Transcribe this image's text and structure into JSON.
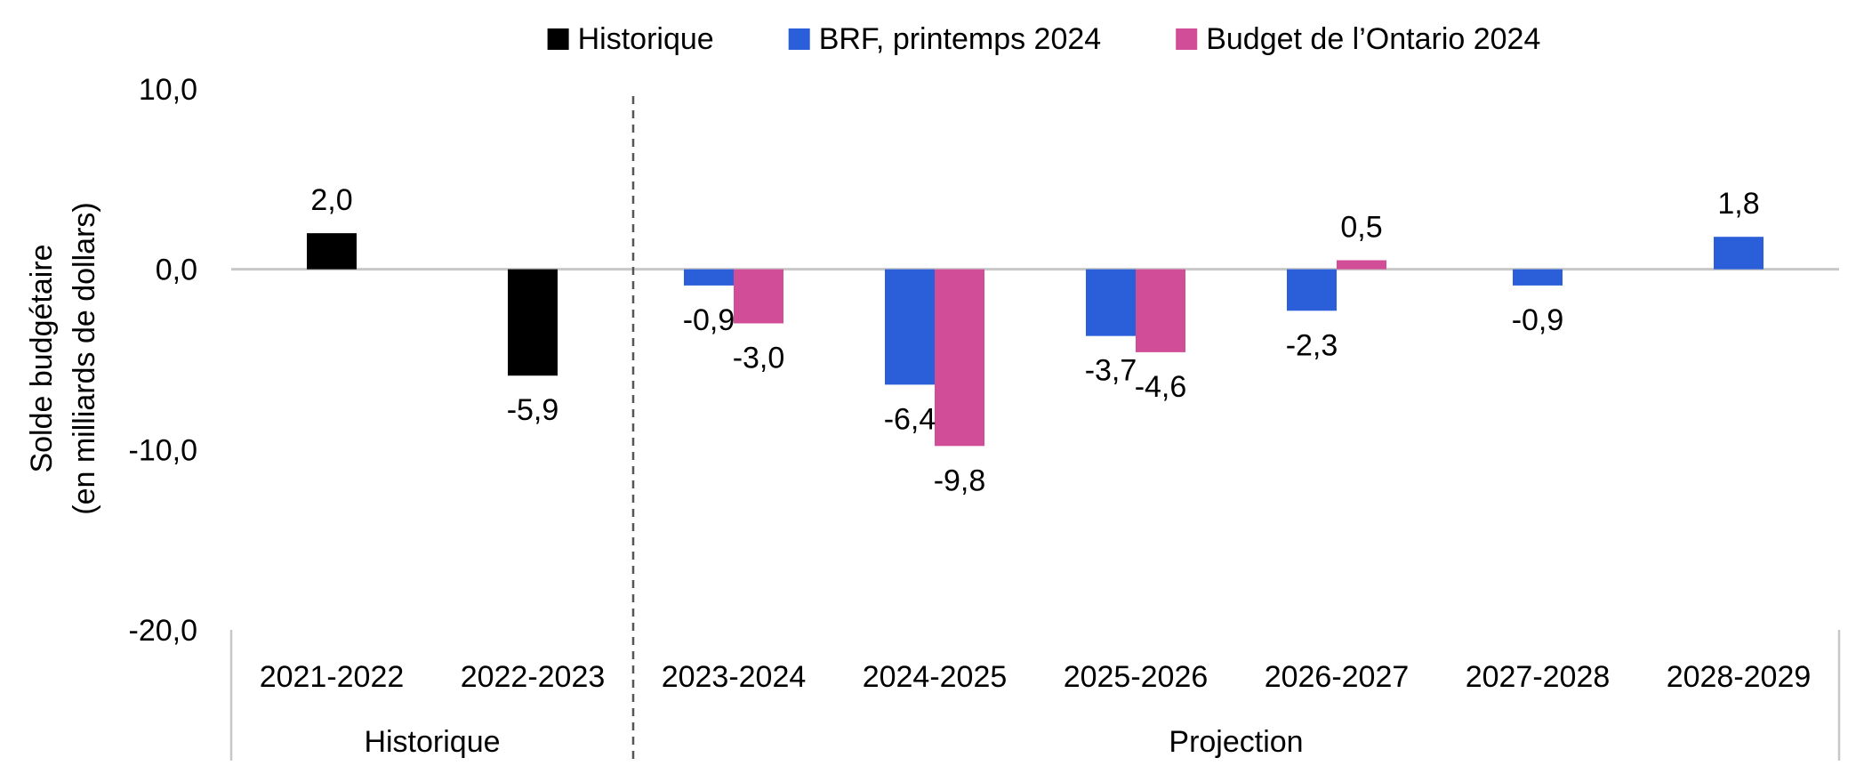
{
  "chart_data": {
    "type": "bar",
    "title": "",
    "ylabel_line1": "Solde budgétaire",
    "ylabel_line2": "(en milliards de dollars)",
    "ylim": [
      -20,
      10
    ],
    "yticks": [
      {
        "value": 10,
        "label": "10,0"
      },
      {
        "value": 0,
        "label": "0,0"
      },
      {
        "value": -10,
        "label": "-10,0"
      },
      {
        "value": -20,
        "label": "-20,0"
      }
    ],
    "categories": [
      "2021-2022",
      "2022-2023",
      "2023-2024",
      "2024-2025",
      "2025-2026",
      "2026-2027",
      "2027-2028",
      "2028-2029"
    ],
    "groups": [
      {
        "label": "Historique",
        "categories": [
          "2021-2022",
          "2022-2023"
        ]
      },
      {
        "label": "Projection",
        "categories": [
          "2023-2024",
          "2024-2025",
          "2025-2026",
          "2026-2027",
          "2027-2028",
          "2028-2029"
        ]
      }
    ],
    "legend_position": "top",
    "grid": false,
    "series": [
      {
        "name": "Historique",
        "color": "#000000",
        "values": [
          2.0,
          -5.9,
          null,
          null,
          null,
          null,
          null,
          null
        ],
        "labels": [
          "2,0",
          "-5,9",
          "",
          "",
          "",
          "",
          "",
          ""
        ]
      },
      {
        "name": "BRF, printemps 2024",
        "color": "#2B5FD9",
        "values": [
          null,
          null,
          -0.9,
          -6.4,
          -3.7,
          -2.3,
          -0.9,
          1.8
        ],
        "labels": [
          "",
          "",
          "-0,9",
          "-6,4",
          "-3,7",
          "-2,3",
          "-0,9",
          "1,8"
        ]
      },
      {
        "name": "Budget de l’Ontario 2024",
        "color": "#D24D98",
        "values": [
          null,
          null,
          -3.0,
          -9.8,
          -4.6,
          0.5,
          null,
          null
        ],
        "labels": [
          "",
          "",
          "-3,0",
          "-9,8",
          "-4,6",
          "0,5",
          "",
          ""
        ]
      }
    ]
  }
}
